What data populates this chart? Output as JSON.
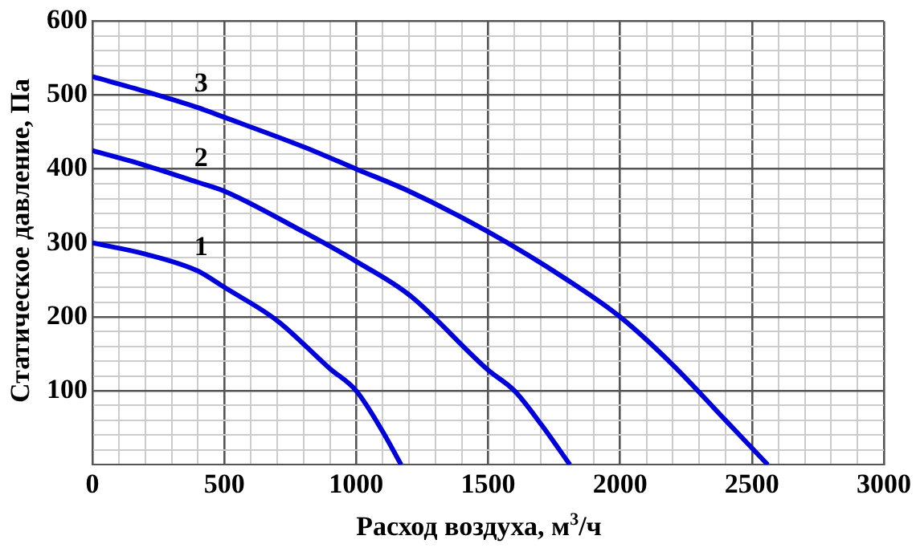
{
  "chart_data": {
    "type": "line",
    "xlabel": "Расход воздуха, м$^{3}$/ч",
    "ylabel": "Статическое давление, Па",
    "xlim": [
      0,
      3000
    ],
    "ylim": [
      0,
      600
    ],
    "xticks": [
      0,
      {
        "value": 100,
        "label": null
      },
      {
        "value": 200,
        "label": null
      },
      {
        "value": 300,
        "label": null
      },
      {
        "value": 400,
        "label": null
      },
      500,
      {
        "value": 600,
        "label": null
      },
      {
        "value": 700,
        "label": null
      },
      {
        "value": 800,
        "label": null
      },
      {
        "value": 900,
        "label": null
      },
      1000,
      {
        "value": 1100,
        "label": null
      },
      {
        "value": 1200,
        "label": null
      },
      {
        "value": 1300,
        "label": null
      },
      {
        "value": 1400,
        "label": null
      },
      1500,
      {
        "value": 1600,
        "label": null
      },
      {
        "value": 1700,
        "label": null
      },
      {
        "value": 1800,
        "label": null
      },
      {
        "value": 1900,
        "label": null
      },
      2000,
      {
        "value": 2100,
        "label": null
      },
      {
        "value": 2200,
        "label": null
      },
      {
        "value": 2300,
        "label": null
      },
      {
        "value": 2400,
        "label": null
      },
      2500,
      {
        "value": 2600,
        "label": null
      },
      {
        "value": 2700,
        "label": null
      },
      {
        "value": 2800,
        "label": null
      },
      {
        "value": 2900,
        "label": null
      },
      3000
    ],
    "yticks": [
      {
        "value": 0,
        "label": null
      },
      {
        "value": 20,
        "label": null
      },
      {
        "value": 40,
        "label": null
      },
      {
        "value": 60,
        "label": null
      },
      {
        "value": 80,
        "label": null
      },
      100,
      {
        "value": 120,
        "label": null
      },
      {
        "value": 140,
        "label": null
      },
      {
        "value": 160,
        "label": null
      },
      {
        "value": 180,
        "label": null
      },
      200,
      {
        "value": 220,
        "label": null
      },
      {
        "value": 240,
        "label": null
      },
      {
        "value": 260,
        "label": null
      },
      {
        "value": 280,
        "label": null
      },
      300,
      {
        "value": 320,
        "label": null
      },
      {
        "value": 340,
        "label": null
      },
      {
        "value": 360,
        "label": null
      },
      {
        "value": 380,
        "label": null
      },
      400,
      {
        "value": 420,
        "label": null
      },
      {
        "value": 440,
        "label": null
      },
      {
        "value": 460,
        "label": null
      },
      {
        "value": 480,
        "label": null
      },
      500,
      {
        "value": 520,
        "label": null
      },
      {
        "value": 540,
        "label": null
      },
      {
        "value": 560,
        "label": null
      },
      {
        "value": 580,
        "label": null
      },
      600
    ],
    "grid": true,
    "legend": false,
    "marker": "none",
    "line_style": "solid",
    "series": [
      {
        "name": "1",
        "color": "#0000dd",
        "x": [
          0,
          200,
          400,
          500,
          700,
          900,
          1000,
          1100,
          1170
        ],
        "values": [
          300,
          285,
          262,
          240,
          195,
          130,
          100,
          45,
          0
        ]
      },
      {
        "name": "2",
        "color": "#0000dd",
        "x": [
          0,
          200,
          400,
          500,
          800,
          1000,
          1200,
          1500,
          1600,
          1700,
          1810
        ],
        "values": [
          425,
          405,
          382,
          370,
          315,
          275,
          230,
          128,
          100,
          55,
          0
        ]
      },
      {
        "name": "3",
        "color": "#0000dd",
        "x": [
          0,
          200,
          400,
          500,
          800,
          1000,
          1200,
          1500,
          1800,
          2000,
          2200,
          2400,
          2560
        ],
        "values": [
          525,
          505,
          483,
          470,
          430,
          400,
          370,
          315,
          250,
          200,
          135,
          60,
          0
        ]
      }
    ]
  }
}
